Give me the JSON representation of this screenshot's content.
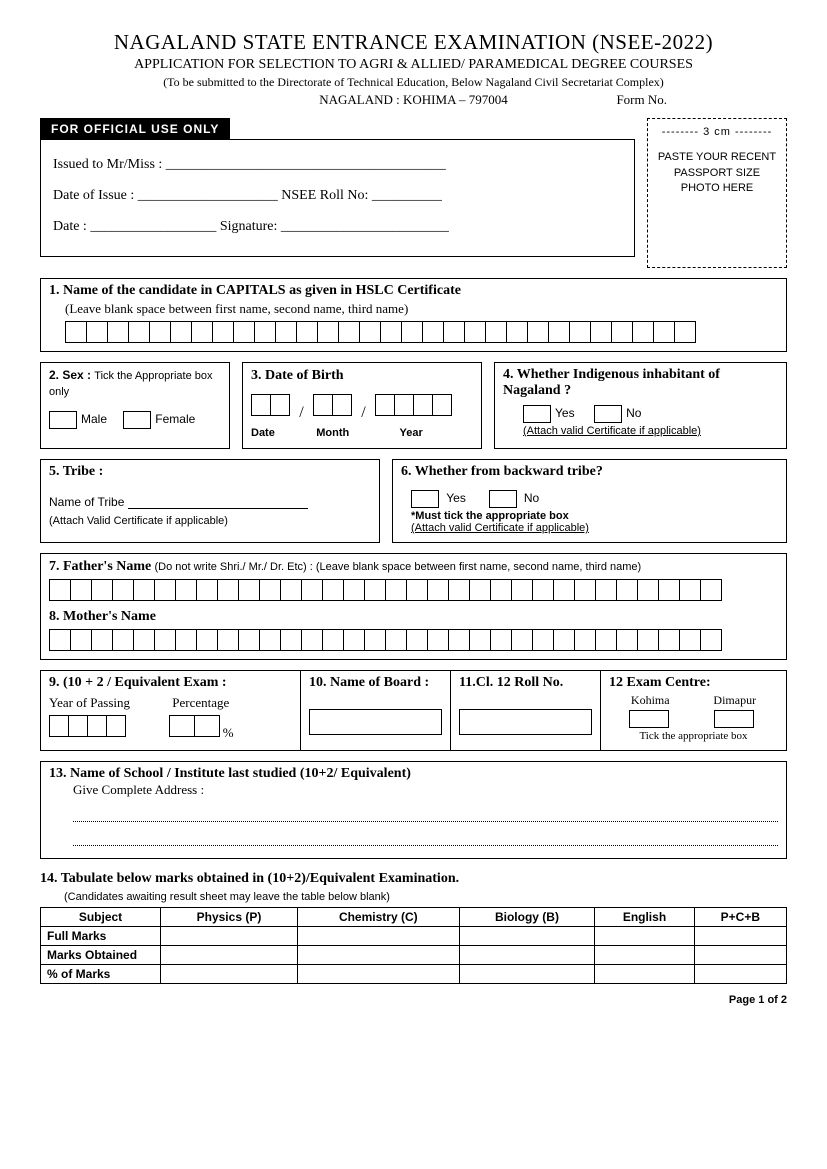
{
  "header": {
    "title1": "NAGALAND STATE ENTRANCE EXAMINATION (NSEE-2022)",
    "title2": "APPLICATION FOR SELECTION TO AGRI & ALLIED/ PARAMEDICAL DEGREE COURSES",
    "title3": "(To be submitted to the Directorate of Technical Education, Below Nagaland Civil Secretariat Complex)",
    "title4": "NAGALAND : KOHIMA – 797004",
    "formno_label": "Form No."
  },
  "official": {
    "bar": "FOR  OFFICIAL  USE  ONLY",
    "issued": "Issued to Mr/Miss : ________________________________________",
    "doi": "Date of Issue : ____________________ NSEE Roll No: __________",
    "date_sig": "Date : __________________ Signature: ________________________"
  },
  "photo": {
    "size": "-------- 3 cm --------",
    "line1": "PASTE YOUR RECENT",
    "line2": "PASSPORT SIZE",
    "line3": "PHOTO HERE"
  },
  "s1": {
    "title": "1.  Name of the candidate in CAPITALS as given in HSLC Certificate",
    "sub": "(Leave blank space between first name, second name, third name)",
    "cells": 30
  },
  "s2": {
    "title": "2. Sex :",
    "hint": "Tick the Appropriate box only",
    "male": "Male",
    "female": "Female"
  },
  "s3": {
    "title": "3. Date of Birth",
    "d": "Date",
    "m": "Month",
    "y": "Year"
  },
  "s4": {
    "title": "4. Whether Indigenous inhabitant of Nagaland ?",
    "yes": "Yes",
    "no": "No",
    "attach": "(Attach valid Certificate if applicable)"
  },
  "s5": {
    "title": "5.  Tribe :",
    "name": "Name of Tribe",
    "attach": "(Attach Valid Certificate if applicable)"
  },
  "s6": {
    "title": "6. Whether from backward tribe?",
    "yes": "Yes",
    "no": "No",
    "must": "*Must tick  the appropriate box",
    "attach": "(Attach valid Certificate if applicable)"
  },
  "s7": {
    "title": "7.  Father's Name",
    "hint": "(Do not write Shri./ Mr./ Dr. Etc) : (Leave blank space between first name, second name, third name)",
    "cells": 32
  },
  "s8": {
    "title": "8.  Mother's Name",
    "cells": 32
  },
  "s9": {
    "title": "9. (10 + 2 / Equivalent Exam :",
    "yop": "Year of Passing",
    "pct": "Percentage"
  },
  "s10": {
    "title": "10. Name of Board :"
  },
  "s11": {
    "title": "11.Cl. 12 Roll No."
  },
  "s12": {
    "title": "12 Exam Centre:",
    "k": "Kohima",
    "d": "Dimapur",
    "tick": "Tick the appropriate box"
  },
  "s13": {
    "title": "13.  Name of School / Institute last studied  (10+2/ Equivalent)",
    "sub": "Give Complete Address  :"
  },
  "s14": {
    "title": "14.  Tabulate below marks obtained in (10+2)/Equivalent Examination.",
    "sub": "(Candidates awaiting result sheet may leave the table below blank)",
    "cols": [
      "Subject",
      "Physics  (P)",
      "Chemistry (C)",
      "Biology  (B)",
      "English",
      "P+C+B"
    ],
    "rows": [
      "Full Marks",
      "Marks Obtained",
      "%  of Marks"
    ]
  },
  "footer": "Page 1 of 2"
}
